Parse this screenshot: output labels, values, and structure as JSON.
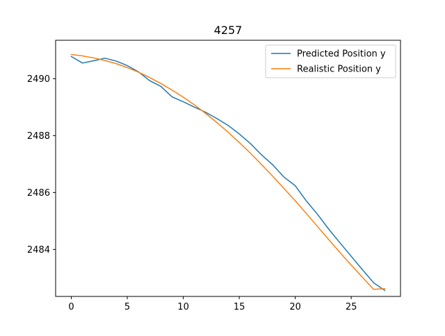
{
  "chart_data": {
    "type": "line",
    "title": "4257",
    "xlabel": "",
    "ylabel": "",
    "xlim": [
      -1.4,
      29.4
    ],
    "ylim": [
      2482.35,
      2491.35
    ],
    "x_ticks": [
      0,
      5,
      10,
      15,
      20,
      25
    ],
    "y_ticks": [
      2484,
      2486,
      2488,
      2490
    ],
    "grid": false,
    "legend_position": "top-right",
    "x": [
      0,
      1,
      2,
      3,
      4,
      5,
      6,
      7,
      8,
      9,
      10,
      11,
      12,
      13,
      14,
      15,
      16,
      17,
      18,
      19,
      20,
      21,
      22,
      23,
      24,
      25,
      26,
      27,
      28
    ],
    "series": [
      {
        "name": "Predicted Position y",
        "color": "#1f77b4",
        "values": [
          2490.78,
          2490.55,
          2490.63,
          2490.72,
          2490.62,
          2490.46,
          2490.24,
          2489.93,
          2489.73,
          2489.36,
          2489.19,
          2489.0,
          2488.82,
          2488.6,
          2488.36,
          2488.06,
          2487.72,
          2487.32,
          2486.97,
          2486.54,
          2486.24,
          2485.7,
          2485.23,
          2484.71,
          2484.23,
          2483.76,
          2483.29,
          2482.83,
          2482.56
        ]
      },
      {
        "name": "Realistic Position y",
        "color": "#ff7f0e",
        "values": [
          2490.85,
          2490.8,
          2490.73,
          2490.64,
          2490.53,
          2490.39,
          2490.23,
          2490.04,
          2489.83,
          2489.6,
          2489.35,
          2489.08,
          2488.78,
          2488.46,
          2488.12,
          2487.76,
          2487.38,
          2486.98,
          2486.57,
          2486.14,
          2485.71,
          2485.26,
          2484.8,
          2484.34,
          2483.89,
          2483.45,
          2483.02,
          2482.6,
          2482.62
        ]
      }
    ]
  }
}
